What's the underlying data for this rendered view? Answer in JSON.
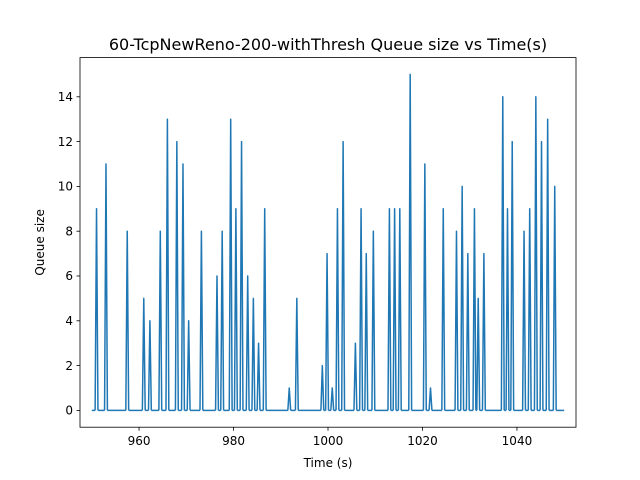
{
  "chart_data": {
    "type": "line",
    "title": "60-TcpNewReno-200-withThresh Queue size vs Time(s)",
    "xlabel": "Time (s)",
    "ylabel": "Queue size",
    "xlim": [
      947.5,
      1052.5
    ],
    "ylim": [
      -0.75,
      15.75
    ],
    "xticks": [
      960,
      980,
      1000,
      1020,
      1040
    ],
    "yticks": [
      0,
      2,
      4,
      6,
      8,
      10,
      12,
      14
    ],
    "grid": false,
    "line_color": "#1f77b4",
    "baseline": {
      "start": 950,
      "end": 1050,
      "value": 0
    },
    "peaks": [
      {
        "t": 951.0,
        "v": 9
      },
      {
        "t": 953.0,
        "v": 11
      },
      {
        "t": 957.5,
        "v": 8
      },
      {
        "t": 961.0,
        "v": 5
      },
      {
        "t": 962.3,
        "v": 4
      },
      {
        "t": 964.5,
        "v": 8
      },
      {
        "t": 966.0,
        "v": 13
      },
      {
        "t": 968.0,
        "v": 12
      },
      {
        "t": 969.3,
        "v": 11
      },
      {
        "t": 970.5,
        "v": 4
      },
      {
        "t": 973.2,
        "v": 8
      },
      {
        "t": 976.5,
        "v": 6
      },
      {
        "t": 977.6,
        "v": 8
      },
      {
        "t": 979.4,
        "v": 13
      },
      {
        "t": 980.5,
        "v": 9
      },
      {
        "t": 981.7,
        "v": 12
      },
      {
        "t": 983.0,
        "v": 6
      },
      {
        "t": 984.2,
        "v": 5
      },
      {
        "t": 985.3,
        "v": 3
      },
      {
        "t": 986.6,
        "v": 9
      },
      {
        "t": 991.8,
        "v": 1
      },
      {
        "t": 993.4,
        "v": 5
      },
      {
        "t": 998.8,
        "v": 2
      },
      {
        "t": 999.8,
        "v": 7
      },
      {
        "t": 1000.9,
        "v": 1
      },
      {
        "t": 1002.0,
        "v": 9
      },
      {
        "t": 1003.2,
        "v": 12
      },
      {
        "t": 1005.8,
        "v": 3
      },
      {
        "t": 1007.0,
        "v": 9
      },
      {
        "t": 1008.1,
        "v": 7
      },
      {
        "t": 1009.6,
        "v": 8
      },
      {
        "t": 1013.0,
        "v": 9
      },
      {
        "t": 1014.1,
        "v": 9
      },
      {
        "t": 1015.2,
        "v": 9
      },
      {
        "t": 1017.4,
        "v": 15
      },
      {
        "t": 1020.5,
        "v": 11
      },
      {
        "t": 1021.7,
        "v": 1
      },
      {
        "t": 1024.4,
        "v": 9
      },
      {
        "t": 1027.2,
        "v": 8
      },
      {
        "t": 1028.4,
        "v": 10
      },
      {
        "t": 1029.6,
        "v": 7
      },
      {
        "t": 1031.0,
        "v": 9
      },
      {
        "t": 1031.8,
        "v": 5
      },
      {
        "t": 1033.0,
        "v": 7
      },
      {
        "t": 1037.0,
        "v": 14
      },
      {
        "t": 1038.0,
        "v": 9
      },
      {
        "t": 1039.0,
        "v": 12
      },
      {
        "t": 1041.5,
        "v": 8
      },
      {
        "t": 1042.7,
        "v": 9
      },
      {
        "t": 1044.0,
        "v": 14
      },
      {
        "t": 1045.2,
        "v": 12
      },
      {
        "t": 1046.5,
        "v": 13
      },
      {
        "t": 1048.0,
        "v": 10
      }
    ]
  }
}
